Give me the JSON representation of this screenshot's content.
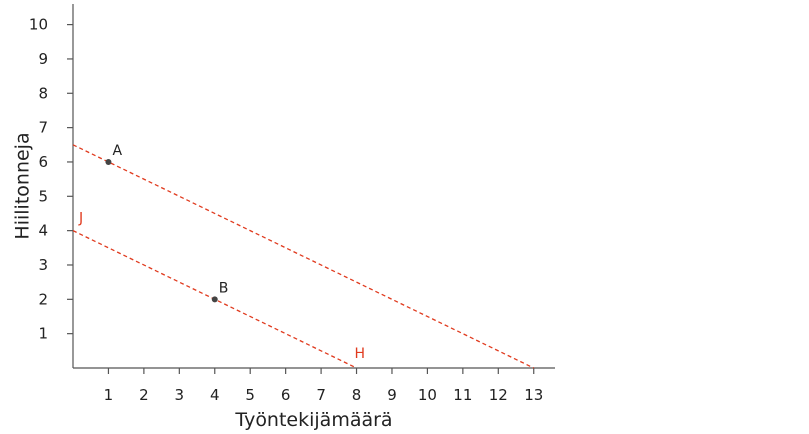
{
  "chart_data": {
    "type": "line",
    "title": "",
    "xlabel": "Työntekijämäärä",
    "ylabel": "Hiilitonneja",
    "xlim": [
      0,
      13.6
    ],
    "ylim": [
      0,
      10.6
    ],
    "x_ticks": [
      1,
      2,
      3,
      4,
      5,
      6,
      7,
      8,
      9,
      10,
      11,
      12,
      13
    ],
    "y_ticks": [
      1,
      2,
      3,
      4,
      5,
      6,
      7,
      8,
      9,
      10
    ],
    "grid": false,
    "line_color": "#e03a1e",
    "point_color": "#444444",
    "series": [
      {
        "label": "",
        "style": "dashed",
        "points": [
          [
            0,
            6.5
          ],
          [
            13,
            0
          ]
        ]
      },
      {
        "label": "J",
        "end_label": "H",
        "style": "dashed",
        "points": [
          [
            0,
            4
          ],
          [
            8,
            0
          ]
        ]
      }
    ],
    "points": [
      {
        "label": "A",
        "x": 1,
        "y": 6
      },
      {
        "label": "B",
        "x": 4,
        "y": 2
      }
    ]
  }
}
